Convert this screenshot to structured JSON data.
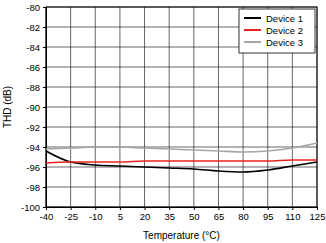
{
  "chart_data": {
    "type": "line",
    "x_label": "Temperature (°C)",
    "y_label": "THD (dB)",
    "x": [
      -40,
      -25,
      -10,
      5,
      20,
      35,
      50,
      65,
      80,
      95,
      110,
      125
    ],
    "series": [
      {
        "name": "Device 1",
        "color": "#000000",
        "values": [
          -94.4,
          -95.5,
          -95.8,
          -95.9,
          -96.0,
          -96.1,
          -96.2,
          -96.4,
          -96.5,
          -96.3,
          -95.9,
          -95.5
        ]
      },
      {
        "name": "Device 2",
        "color": "#e8231d",
        "values": [
          -95.6,
          -95.5,
          -95.5,
          -95.5,
          -95.4,
          -95.4,
          -95.4,
          -95.4,
          -95.4,
          -95.4,
          -95.3,
          -95.3
        ]
      },
      {
        "name": "Device 3",
        "color": "#a6a6a6",
        "values": [
          -94.2,
          -94.1,
          -94.0,
          -94.0,
          -94.1,
          -94.2,
          -94.3,
          -94.4,
          -94.5,
          -94.4,
          -94.1,
          -93.6
        ]
      }
    ],
    "xlim": [
      -40,
      125
    ],
    "xticks": [
      -40,
      -25,
      -10,
      5,
      20,
      35,
      50,
      65,
      80,
      95,
      110,
      125
    ],
    "ylim": [
      -100,
      -80
    ],
    "yticks": [
      -100,
      -98,
      -96,
      -94,
      -92,
      -90,
      -88,
      -86,
      -84,
      -82,
      -80
    ],
    "grid": true,
    "legend": "upper right"
  }
}
